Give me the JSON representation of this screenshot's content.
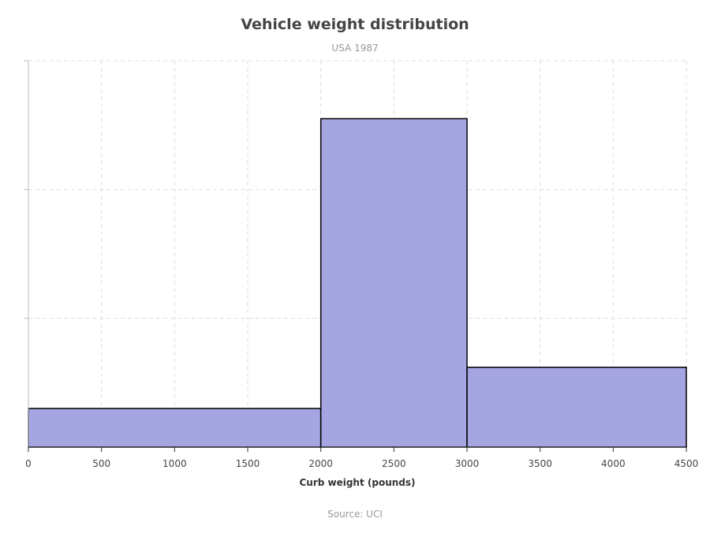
{
  "chart_data": {
    "type": "bar",
    "title": "Vehicle weight distribution",
    "subtitle": "USA 1987",
    "source": "Source: UCI",
    "xlabel": "Curb weight (pounds)",
    "ylabel": "",
    "bins": [
      {
        "x0": 0,
        "x1": 2000,
        "value": 3
      },
      {
        "x0": 2000,
        "x1": 3000,
        "value": 25.5
      },
      {
        "x0": 3000,
        "x1": 4500,
        "value": 6.2
      }
    ],
    "xlim": [
      0,
      4500
    ],
    "ylim": [
      0,
      30
    ],
    "x_ticks": [
      0,
      500,
      1000,
      1500,
      2000,
      2500,
      3000,
      3500,
      4000,
      4500
    ],
    "y_gridlines": [
      10,
      20,
      30
    ],
    "grid": true,
    "bar_color": "#a5a5e2",
    "bar_outline_color": "#000000",
    "grid_color": "#dddddd"
  }
}
